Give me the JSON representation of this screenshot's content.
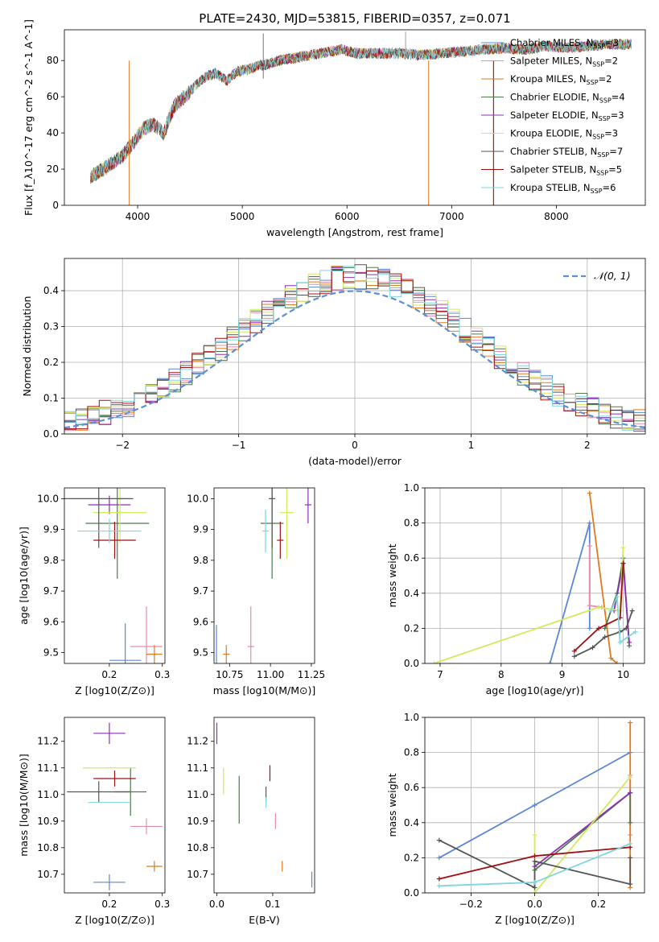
{
  "figure_title": "PLATE=2430, MJD=53815, FIBERID=0357, z=0.071",
  "colors": {
    "chabrier_miles": "#5b87d6",
    "salpeter_miles": "#e58cb0",
    "kroupa_miles": "#e07a1f",
    "chabrier_elodie": "#4c7a4c",
    "salpeter_elodie": "#8e2fb4",
    "kroupa_elodie": "#d4e860",
    "chabrier_stelib": "#555555",
    "salpeter_stelib": "#a01010",
    "kroupa_stelib": "#7fd6dc",
    "normal_curve": "#5b8fd6"
  },
  "chart_data": [
    {
      "id": "spectrum",
      "type": "line",
      "xlabel": "wavelength [Angstrom, rest frame]",
      "ylabel": "Flux [f_λ10^-17 erg cm^-2 s^-1 A^-1]",
      "xlim": [
        3300,
        8850
      ],
      "ylim": [
        0,
        97
      ],
      "xticks": [
        4000,
        5000,
        6000,
        7000,
        8000
      ],
      "yticks": [
        0,
        20,
        40,
        60,
        80
      ],
      "grid": false,
      "legend_position": "top-right",
      "x": [
        3550,
        3650,
        3750,
        3850,
        3950,
        4050,
        4150,
        4250,
        4350,
        4450,
        4550,
        4650,
        4750,
        4850,
        4950,
        5050,
        5150,
        5250,
        5350,
        5450,
        5550,
        5650,
        5750,
        5850,
        5950,
        6100,
        6300,
        6500,
        6700,
        6900,
        7100,
        7300,
        7500,
        7700,
        7900,
        8100,
        8300,
        8500,
        8700
      ],
      "y": [
        16,
        19,
        23,
        27,
        34,
        42,
        45,
        40,
        55,
        60,
        66,
        71,
        73,
        69,
        74,
        75,
        77,
        78,
        80,
        81,
        82,
        83,
        84,
        85,
        86,
        84,
        84,
        84,
        83,
        84,
        85,
        86,
        87,
        86,
        88,
        87,
        88,
        89,
        89
      ],
      "series": [
        {
          "name": "Chabrier MILES, N_SSP=3",
          "legend_label": "Chabrier MILES, N",
          "n_ssp": "=3",
          "color_key": "chabrier_miles"
        },
        {
          "name": "Salpeter MILES, N_SSP=2",
          "legend_label": "Salpeter MILES, N",
          "n_ssp": "=2",
          "color_key": "salpeter_miles"
        },
        {
          "name": "Kroupa MILES, N_SSP=2",
          "legend_label": "Kroupa MILES, N",
          "n_ssp": "=2",
          "color_key": "kroupa_miles"
        },
        {
          "name": "Chabrier ELODIE, N_SSP=4",
          "legend_label": "Chabrier ELODIE, N",
          "n_ssp": "=4",
          "color_key": "chabrier_elodie"
        },
        {
          "name": "Salpeter ELODIE, N_SSP=3",
          "legend_label": "Salpeter ELODIE, N",
          "n_ssp": "=3",
          "color_key": "salpeter_elodie"
        },
        {
          "name": "Kroupa ELODIE, N_SSP=3",
          "legend_label": "Kroupa ELODIE, N",
          "n_ssp": "=3",
          "color_key": "kroupa_elodie"
        },
        {
          "name": "Chabrier STELIB, N_SSP=7",
          "legend_label": "Chabrier STELIB, N",
          "n_ssp": "=7",
          "color_key": "chabrier_stelib"
        },
        {
          "name": "Salpeter STELIB, N_SSP=5",
          "legend_label": "Salpeter STELIB, N",
          "n_ssp": "=5",
          "color_key": "salpeter_stelib"
        },
        {
          "name": "Kroupa STELIB, N_SSP=6",
          "legend_label": "Kroupa STELIB, N",
          "n_ssp": "=6",
          "color_key": "kroupa_stelib"
        }
      ]
    },
    {
      "id": "residuals",
      "type": "histogram",
      "xlabel": "(data-model)/error",
      "ylabel": "Normed distribution",
      "xlim": [
        -2.5,
        2.5
      ],
      "ylim": [
        0,
        0.49
      ],
      "xticks": [
        -2,
        -1,
        0,
        1,
        2
      ],
      "yticks": [
        0.0,
        0.1,
        0.2,
        0.3,
        0.4
      ],
      "grid": true,
      "legend_position": "top-right",
      "curve_label": "𝒩(0, 1)",
      "bin_width": 0.1,
      "bins_start": -2.5
    },
    {
      "id": "z_age",
      "type": "errorbar",
      "xlabel": "Z [log10(Z/Z⊙)]",
      "ylabel": "age [log10(age/yr)]",
      "xlim": [
        0.115,
        0.305
      ],
      "ylim": [
        9.465,
        10.035
      ],
      "xticks": [
        0.2,
        0.3
      ],
      "yticks": [
        9.5,
        9.6,
        9.7,
        9.8,
        9.9,
        10.0
      ],
      "grid": false,
      "points": [
        {
          "color_key": "chabrier_miles",
          "x": 0.23,
          "xerr": 0.03,
          "y": 9.475,
          "yerr": 0.12
        },
        {
          "color_key": "salpeter_miles",
          "x": 0.27,
          "xerr": 0.03,
          "y": 9.52,
          "yerr": 0.13
        },
        {
          "color_key": "kroupa_miles",
          "x": 0.285,
          "xerr": 0.015,
          "y": 9.495,
          "yerr": 0.03
        },
        {
          "color_key": "chabrier_elodie",
          "x": 0.215,
          "xerr": 0.06,
          "y": 9.92,
          "yerr": 0.18
        },
        {
          "color_key": "salpeter_elodie",
          "x": 0.2,
          "xerr": 0.04,
          "y": 9.98,
          "yerr": 0.03
        },
        {
          "color_key": "kroupa_elodie",
          "x": 0.22,
          "xerr": 0.05,
          "y": 9.955,
          "yerr": 0.1
        },
        {
          "color_key": "chabrier_stelib",
          "x": 0.18,
          "xerr": 0.065,
          "y": 10.0,
          "yerr": 0.16
        },
        {
          "color_key": "salpeter_stelib",
          "x": 0.21,
          "xerr": 0.04,
          "y": 9.865,
          "yerr": 0.06
        },
        {
          "color_key": "kroupa_stelib",
          "x": 0.2,
          "xerr": 0.06,
          "y": 9.895,
          "yerr": 0.04
        }
      ]
    },
    {
      "id": "mass_age",
      "type": "errorbar",
      "xlabel": "mass [log10(M/M⊙)]",
      "ylabel": "",
      "xlim": [
        10.655,
        11.27
      ],
      "ylim": [
        9.465,
        10.035
      ],
      "xticks": [
        10.75,
        11.0,
        11.25
      ],
      "yticks": [
        9.5,
        9.6,
        9.7,
        9.8,
        9.9,
        10.0
      ],
      "grid": false,
      "points": [
        {
          "color_key": "chabrier_miles",
          "x": 10.67,
          "xerr": 0.0,
          "y": 9.49,
          "yerr": 0.1
        },
        {
          "color_key": "salpeter_miles",
          "x": 10.88,
          "xerr": 0.02,
          "y": 9.52,
          "yerr": 0.13
        },
        {
          "color_key": "kroupa_miles",
          "x": 10.73,
          "xerr": 0.02,
          "y": 9.495,
          "yerr": 0.03
        },
        {
          "color_key": "chabrier_elodie",
          "x": 11.01,
          "xerr": 0.07,
          "y": 9.92,
          "yerr": 0.18
        },
        {
          "color_key": "salpeter_elodie",
          "x": 11.23,
          "xerr": 0.02,
          "y": 9.98,
          "yerr": 0.06
        },
        {
          "color_key": "kroupa_elodie",
          "x": 11.1,
          "xerr": 0.04,
          "y": 9.955,
          "yerr": 0.15
        },
        {
          "color_key": "chabrier_stelib",
          "x": 11.01,
          "xerr": 0.02,
          "y": 10.0,
          "yerr": 0.16
        },
        {
          "color_key": "salpeter_stelib",
          "x": 11.06,
          "xerr": 0.02,
          "y": 9.865,
          "yerr": 0.06
        },
        {
          "color_key": "kroupa_stelib",
          "x": 10.97,
          "xerr": 0.02,
          "y": 9.895,
          "yerr": 0.07
        }
      ]
    },
    {
      "id": "age_weight",
      "type": "line",
      "xlabel": "age [log10(age/yr)]",
      "ylabel": "mass weight",
      "xlim": [
        6.75,
        10.35
      ],
      "ylim": [
        0,
        1
      ],
      "xticks": [
        7,
        8,
        9,
        10
      ],
      "yticks": [
        0.0,
        0.2,
        0.4,
        0.6,
        0.8,
        1.0
      ],
      "grid": true,
      "series": [
        {
          "color_key": "chabrier_miles",
          "x": [
            8.8,
            9.45,
            9.45
          ],
          "y": [
            0.0,
            0.8,
            0.2
          ]
        },
        {
          "color_key": "salpeter_miles",
          "x": [
            9.45,
            9.45,
            9.65
          ],
          "y": [
            0.67,
            0.33,
            0.32
          ]
        },
        {
          "color_key": "kroupa_miles",
          "x": [
            9.45,
            9.8,
            9.9
          ],
          "y": [
            0.97,
            0.03,
            0.0
          ]
        },
        {
          "color_key": "chabrier_elodie",
          "x": [
            9.7,
            9.9,
            10.0,
            10.1
          ],
          "y": [
            0.2,
            0.4,
            0.6,
            0.1
          ]
        },
        {
          "color_key": "salpeter_elodie",
          "x": [
            9.85,
            10.0,
            10.1
          ],
          "y": [
            0.3,
            0.57,
            0.12
          ]
        },
        {
          "color_key": "kroupa_elodie",
          "x": [
            6.9,
            9.6,
            9.95,
            10.0
          ],
          "y": [
            0.0,
            0.32,
            0.3,
            0.66
          ]
        },
        {
          "color_key": "chabrier_stelib",
          "x": [
            9.2,
            9.5,
            9.7,
            9.95,
            10.05,
            10.15
          ],
          "y": [
            0.04,
            0.09,
            0.15,
            0.18,
            0.2,
            0.3
          ]
        },
        {
          "color_key": "salpeter_stelib",
          "x": [
            9.2,
            9.6,
            9.95,
            10.0
          ],
          "y": [
            0.07,
            0.2,
            0.26,
            0.57
          ]
        },
        {
          "color_key": "kroupa_stelib",
          "x": [
            9.8,
            9.9,
            9.95,
            10.2
          ],
          "y": [
            0.3,
            0.38,
            0.12,
            0.18
          ]
        }
      ]
    },
    {
      "id": "z_mass",
      "type": "errorbar",
      "xlabel": "Z [log10(Z/Z⊙)]",
      "ylabel": "mass [log10(M/M⊙)]",
      "xlim": [
        0.115,
        0.305
      ],
      "ylim": [
        10.63,
        11.29
      ],
      "xticks": [
        0.2,
        0.3
      ],
      "yticks": [
        10.7,
        10.8,
        10.9,
        11.0,
        11.1,
        11.2
      ],
      "grid": false,
      "points": [
        {
          "color_key": "chabrier_miles",
          "x": 0.2,
          "xerr": 0.03,
          "y": 10.67,
          "yerr": 0.03
        },
        {
          "color_key": "salpeter_miles",
          "x": 0.27,
          "xerr": 0.03,
          "y": 10.88,
          "yerr": 0.03
        },
        {
          "color_key": "kroupa_miles",
          "x": 0.285,
          "xerr": 0.015,
          "y": 10.73,
          "yerr": 0.02
        },
        {
          "color_key": "chabrier_elodie",
          "x": 0.24,
          "xerr": 0.03,
          "y": 11.01,
          "yerr": 0.09
        },
        {
          "color_key": "salpeter_elodie",
          "x": 0.2,
          "xerr": 0.03,
          "y": 11.23,
          "yerr": 0.04
        },
        {
          "color_key": "kroupa_elodie",
          "x": 0.2,
          "xerr": 0.05,
          "y": 11.1,
          "yerr": 0.0
        },
        {
          "color_key": "chabrier_stelib",
          "x": 0.18,
          "xerr": 0.06,
          "y": 11.01,
          "yerr": 0.04
        },
        {
          "color_key": "salpeter_stelib",
          "x": 0.21,
          "xerr": 0.04,
          "y": 11.06,
          "yerr": 0.03
        },
        {
          "color_key": "kroupa_stelib",
          "x": 0.2,
          "xerr": 0.04,
          "y": 10.97,
          "yerr": 0.0
        }
      ]
    },
    {
      "id": "ebv_mass",
      "type": "errorbar",
      "xlabel": "E(B-V)",
      "ylabel": "",
      "xlim": [
        -0.005,
        0.175
      ],
      "ylim": [
        10.63,
        11.29
      ],
      "xticks": [
        0.0,
        0.1
      ],
      "yticks": [
        10.7,
        10.8,
        10.9,
        11.0,
        11.1,
        11.2
      ],
      "grid": false,
      "points": [
        {
          "color_key": "chabrier_miles",
          "x": 0.17,
          "xerr": 0.0,
          "y": 10.68,
          "yerr": 0.03
        },
        {
          "color_key": "salpeter_miles",
          "x": 0.105,
          "xerr": 0.0,
          "y": 10.9,
          "yerr": 0.03
        },
        {
          "color_key": "kroupa_miles",
          "x": 0.117,
          "xerr": 0.0,
          "y": 10.73,
          "yerr": 0.02
        },
        {
          "color_key": "chabrier_elodie",
          "x": 0.04,
          "xerr": 0.0,
          "y": 10.98,
          "yerr": 0.09
        },
        {
          "color_key": "salpeter_elodie",
          "x": 0.0,
          "xerr": 0.0,
          "y": 11.23,
          "yerr": 0.04
        },
        {
          "color_key": "kroupa_elodie",
          "x": 0.012,
          "xerr": 0.0,
          "y": 11.05,
          "yerr": 0.05
        },
        {
          "color_key": "chabrier_stelib",
          "x": 0.088,
          "xerr": 0.0,
          "y": 11.0,
          "yerr": 0.03
        },
        {
          "color_key": "salpeter_stelib",
          "x": 0.095,
          "xerr": 0.0,
          "y": 11.08,
          "yerr": 0.03
        },
        {
          "color_key": "kroupa_stelib",
          "x": 0.088,
          "xerr": 0.0,
          "y": 10.97,
          "yerr": 0.02
        }
      ]
    },
    {
      "id": "z_weight",
      "type": "line",
      "xlabel": "Z [log10(Z/Z⊙)]",
      "ylabel": "mass weight",
      "xlim": [
        -0.345,
        0.345
      ],
      "ylim": [
        0,
        1
      ],
      "xticks": [
        -0.2,
        0.0,
        0.2
      ],
      "yticks": [
        0.0,
        0.2,
        0.4,
        0.6,
        0.8,
        1.0
      ],
      "grid": true,
      "series": [
        {
          "color_key": "chabrier_miles",
          "x": [
            -0.3,
            0.0,
            0.3
          ],
          "y": [
            0.2,
            0.5,
            0.8
          ]
        },
        {
          "color_key": "salpeter_miles",
          "x": [
            0.3,
            0.3
          ],
          "y": [
            0.33,
            0.67
          ]
        },
        {
          "color_key": "kroupa_miles",
          "x": [
            0.3,
            0.3
          ],
          "y": [
            0.03,
            0.97
          ]
        },
        {
          "color_key": "chabrier_elodie",
          "x": [
            0.0,
            0.3,
            0.3
          ],
          "y": [
            0.13,
            0.57,
            0.4
          ]
        },
        {
          "color_key": "salpeter_elodie",
          "x": [
            0.0,
            0.3
          ],
          "y": [
            0.15,
            0.57
          ]
        },
        {
          "color_key": "kroupa_elodie",
          "x": [
            0.0,
            0.0,
            0.3
          ],
          "y": [
            0.33,
            0.0,
            0.66
          ]
        },
        {
          "color_key": "chabrier_stelib",
          "x": [
            -0.3,
            0.0,
            0.0,
            0.3,
            0.3
          ],
          "y": [
            0.3,
            0.03,
            0.18,
            0.05,
            0.2
          ]
        },
        {
          "color_key": "salpeter_stelib",
          "x": [
            -0.3,
            0.0,
            0.3
          ],
          "y": [
            0.08,
            0.21,
            0.26
          ]
        },
        {
          "color_key": "kroupa_stelib",
          "x": [
            -0.3,
            0.0,
            0.3
          ],
          "y": [
            0.04,
            0.06,
            0.28
          ]
        }
      ]
    }
  ]
}
